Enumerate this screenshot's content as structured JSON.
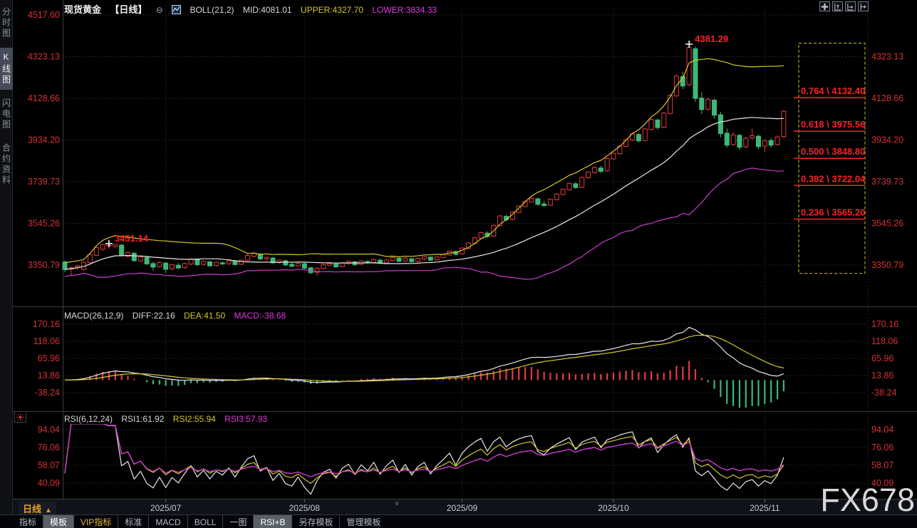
{
  "header": {
    "symbol": "现货黄金",
    "period": "【日线】",
    "collapse_glyph": "⊖",
    "boll_label": "BOLL(21,2)",
    "mid_label": "MID:4081.01",
    "upper_label": "UPPER:4327.70",
    "lower_label": "LOWER:3834.33"
  },
  "sidebar": {
    "items": [
      {
        "label": "分时图",
        "selected": false
      },
      {
        "label": "K线图",
        "selected": true
      },
      {
        "label": "闪电图",
        "selected": false
      },
      {
        "label": "合约资料",
        "selected": false
      }
    ]
  },
  "toolbar": {
    "icons": [
      "crosshair",
      "zoom-vertical",
      "zoom-horizontal",
      "pan-right"
    ]
  },
  "macd_header": {
    "label": "MACD(26,12,9)",
    "diff": "DIFF:22.16",
    "dea": "DEA:41.50",
    "macd": "MACD:-38.68"
  },
  "rsi_header": {
    "label": "RSI(6,12,24)",
    "rsi1": "RSI1:61.92",
    "rsi2": "RSI2:55.94",
    "rsi3": "RSI3:57.93"
  },
  "footer": {
    "period_label": "日线",
    "period_arrow": "▲"
  },
  "tabbar": {
    "tabs": [
      {
        "label": "指标"
      },
      {
        "label": "模板",
        "selected": true
      },
      {
        "label": "VIP指标",
        "vip": true
      },
      {
        "label": "标准"
      },
      {
        "label": "MACD"
      },
      {
        "label": "BOLL"
      },
      {
        "label": "一图"
      },
      {
        "label": "RSI+B",
        "selected": true
      },
      {
        "label": "另存模板"
      },
      {
        "label": "管理模板"
      }
    ]
  },
  "watermark": "FX678",
  "colors": {
    "up": "#e23b41",
    "down": "#3cb878",
    "boll_mid": "#e8e8e8",
    "boll_upper": "#d4c72a",
    "boll_lower": "#cf3ccf",
    "axis_text": "#d63036",
    "annotation": "#ff2222",
    "grid": "#2e2e34",
    "panel_border": "#3a3d46",
    "date_text": "#c6cad2",
    "accent_yellow": "#d4c72a",
    "accent_magenta": "#e039e0",
    "period_orange": "#e8a020",
    "watermark_gray": "#d8d8d8"
  },
  "chart_data": [
    {
      "type": "candlestick",
      "title": "现货黄金 日线",
      "y_ticks": [
        4517.6,
        4323.13,
        4128.66,
        3934.2,
        3739.73,
        3545.26,
        3350.79
      ],
      "x_labels": [
        {
          "label": "2025/07",
          "index": 16
        },
        {
          "label": "2025/08",
          "index": 38
        },
        {
          "label": "2025/09",
          "index": 63
        },
        {
          "label": "2025/10",
          "index": 87
        },
        {
          "label": "2025/11",
          "index": 111
        }
      ],
      "annotations": [
        {
          "label": "3451.14",
          "index": 7,
          "price": 3451.14
        },
        {
          "label": "4381.29",
          "index": 99,
          "price": 4381.29
        }
      ],
      "boll": {
        "label": "BOLL(21,2)",
        "period": 21,
        "mult": 2,
        "mid": 4081.01,
        "upper": 4327.7,
        "lower": 3834.33
      },
      "fibonacci": [
        {
          "label": "0.764 \\ 4132.40",
          "ratio": 0.764,
          "price": 4132.4
        },
        {
          "label": "0.618 \\ 3975.56",
          "ratio": 0.618,
          "price": 3975.56
        },
        {
          "label": "0.500 \\ 3848.80",
          "ratio": 0.5,
          "price": 3848.8
        },
        {
          "label": "0.382 \\ 3722.04",
          "ratio": 0.382,
          "price": 3722.04
        },
        {
          "label": "0.236 \\ 3565.20",
          "ratio": 0.236,
          "price": 3565.2
        }
      ],
      "candles": [
        [
          3365,
          3372,
          3318,
          3330
        ],
        [
          3332,
          3345,
          3298,
          3338
        ],
        [
          3340,
          3352,
          3328,
          3346
        ],
        [
          3330,
          3368,
          3326,
          3364
        ],
        [
          3362,
          3408,
          3358,
          3400
        ],
        [
          3396,
          3438,
          3392,
          3432
        ],
        [
          3425,
          3450,
          3418,
          3446
        ],
        [
          3442,
          3451.14,
          3428,
          3444
        ],
        [
          3438,
          3450,
          3430,
          3447
        ],
        [
          3444,
          3448,
          3390,
          3397
        ],
        [
          3392,
          3415,
          3386,
          3409
        ],
        [
          3406,
          3412,
          3366,
          3371
        ],
        [
          3370,
          3394,
          3365,
          3389
        ],
        [
          3386,
          3390,
          3352,
          3356
        ],
        [
          3358,
          3366,
          3324,
          3341
        ],
        [
          3343,
          3368,
          3338,
          3363
        ],
        [
          3360,
          3365,
          3314,
          3331
        ],
        [
          3333,
          3357,
          3327,
          3353
        ],
        [
          3350,
          3360,
          3332,
          3337
        ],
        [
          3339,
          3362,
          3334,
          3358
        ],
        [
          3356,
          3383,
          3350,
          3379
        ],
        [
          3376,
          3381,
          3347,
          3352
        ],
        [
          3354,
          3372,
          3348,
          3368
        ],
        [
          3366,
          3371,
          3342,
          3347
        ],
        [
          3349,
          3367,
          3344,
          3364
        ],
        [
          3361,
          3368,
          3352,
          3356
        ],
        [
          3357,
          3374,
          3353,
          3371
        ],
        [
          3369,
          3373,
          3349,
          3353
        ],
        [
          3355,
          3377,
          3351,
          3374
        ],
        [
          3372,
          3406,
          3368,
          3396
        ],
        [
          3392,
          3413,
          3388,
          3405
        ],
        [
          3401,
          3407,
          3374,
          3379
        ],
        [
          3380,
          3390,
          3372,
          3387
        ],
        [
          3384,
          3389,
          3357,
          3361
        ],
        [
          3362,
          3377,
          3356,
          3374
        ],
        [
          3371,
          3376,
          3346,
          3351
        ],
        [
          3354,
          3360,
          3341,
          3345
        ],
        [
          3347,
          3363,
          3343,
          3359
        ],
        [
          3357,
          3361,
          3332,
          3336
        ],
        [
          3338,
          3342,
          3308,
          3315
        ],
        [
          3317,
          3340,
          3300,
          3336
        ],
        [
          3334,
          3356,
          3330,
          3352
        ],
        [
          3350,
          3362,
          3344,
          3358
        ],
        [
          3356,
          3360,
          3338,
          3342
        ],
        [
          3344,
          3364,
          3340,
          3360
        ],
        [
          3358,
          3372,
          3352,
          3368
        ],
        [
          3366,
          3370,
          3348,
          3352
        ],
        [
          3354,
          3374,
          3350,
          3370
        ],
        [
          3368,
          3372,
          3356,
          3361
        ],
        [
          3363,
          3381,
          3358,
          3377
        ],
        [
          3374,
          3379,
          3355,
          3359
        ],
        [
          3361,
          3378,
          3357,
          3374
        ],
        [
          3372,
          3390,
          3368,
          3386
        ],
        [
          3383,
          3388,
          3364,
          3368
        ],
        [
          3370,
          3387,
          3366,
          3383
        ],
        [
          3380,
          3385,
          3362,
          3366
        ],
        [
          3368,
          3386,
          3363,
          3382
        ],
        [
          3379,
          3394,
          3374,
          3390
        ],
        [
          3388,
          3392,
          3369,
          3373
        ],
        [
          3375,
          3392,
          3371,
          3388
        ],
        [
          3386,
          3404,
          3382,
          3400
        ],
        [
          3398,
          3420,
          3394,
          3416
        ],
        [
          3414,
          3419,
          3396,
          3401
        ],
        [
          3403,
          3434,
          3399,
          3430
        ],
        [
          3428,
          3458,
          3424,
          3454
        ],
        [
          3452,
          3482,
          3448,
          3478
        ],
        [
          3476,
          3506,
          3472,
          3502
        ],
        [
          3500,
          3508,
          3478,
          3484
        ],
        [
          3486,
          3540,
          3482,
          3536
        ],
        [
          3534,
          3584,
          3530,
          3580
        ],
        [
          3578,
          3586,
          3556,
          3562
        ],
        [
          3564,
          3602,
          3560,
          3598
        ],
        [
          3596,
          3630,
          3592,
          3626
        ],
        [
          3624,
          3652,
          3620,
          3648
        ],
        [
          3646,
          3668,
          3642,
          3662
        ],
        [
          3660,
          3666,
          3628,
          3634
        ],
        [
          3636,
          3650,
          3622,
          3628
        ],
        [
          3630,
          3662,
          3626,
          3658
        ],
        [
          3656,
          3686,
          3652,
          3682
        ],
        [
          3680,
          3708,
          3676,
          3704
        ],
        [
          3702,
          3736,
          3698,
          3732
        ],
        [
          3730,
          3738,
          3706,
          3712
        ],
        [
          3714,
          3764,
          3710,
          3760
        ],
        [
          3758,
          3788,
          3754,
          3784
        ],
        [
          3782,
          3812,
          3778,
          3806
        ],
        [
          3804,
          3814,
          3780,
          3788
        ],
        [
          3790,
          3852,
          3786,
          3848
        ],
        [
          3846,
          3876,
          3842,
          3872
        ],
        [
          3870,
          3910,
          3866,
          3906
        ],
        [
          3904,
          3940,
          3900,
          3936
        ],
        [
          3934,
          3968,
          3930,
          3962
        ],
        [
          3960,
          3966,
          3922,
          3930
        ],
        [
          3932,
          3990,
          3928,
          3986
        ],
        [
          3984,
          4036,
          3980,
          4030
        ],
        [
          4028,
          4034,
          3984,
          3992
        ],
        [
          3994,
          4066,
          3990,
          4060
        ],
        [
          4058,
          4148,
          4054,
          4142
        ],
        [
          4140,
          4240,
          4134,
          4232
        ],
        [
          4230,
          4252,
          4172,
          4186
        ],
        [
          4192,
          4381.29,
          4186,
          4366
        ],
        [
          4360,
          4370,
          4112,
          4128
        ],
        [
          4130,
          4158,
          4056,
          4076
        ],
        [
          4078,
          4134,
          4070,
          4124
        ],
        [
          4120,
          4128,
          4034,
          4050
        ],
        [
          4052,
          4066,
          3946,
          3964
        ],
        [
          3966,
          3988,
          3898,
          3910
        ],
        [
          3913,
          3970,
          3906,
          3958
        ],
        [
          3956,
          3964,
          3886,
          3900
        ],
        [
          3903,
          3950,
          3894,
          3942
        ],
        [
          3944,
          3988,
          3936,
          3954
        ],
        [
          3952,
          3960,
          3890,
          3903
        ],
        [
          3906,
          3938,
          3878,
          3930
        ],
        [
          3932,
          3943,
          3900,
          3910
        ],
        [
          3913,
          3956,
          3908,
          3948
        ],
        [
          3950,
          4075,
          3943,
          4068
        ]
      ]
    },
    {
      "type": "macd",
      "label": "MACD(26,12,9)",
      "params": [
        26,
        12,
        9
      ],
      "diff": 22.16,
      "dea": 41.5,
      "macd": -38.68,
      "y_ticks": [
        170.16,
        118.06,
        65.96,
        13.86,
        -38.24
      ],
      "derived_from": "candles"
    },
    {
      "type": "rsi",
      "label": "RSI(6,12,24)",
      "params": [
        6,
        12,
        24
      ],
      "rsi1": 61.92,
      "rsi2": 55.94,
      "rsi3": 57.93,
      "y_ticks": [
        94.04,
        76.06,
        58.07,
        40.09
      ],
      "derived_from": "candles"
    }
  ]
}
